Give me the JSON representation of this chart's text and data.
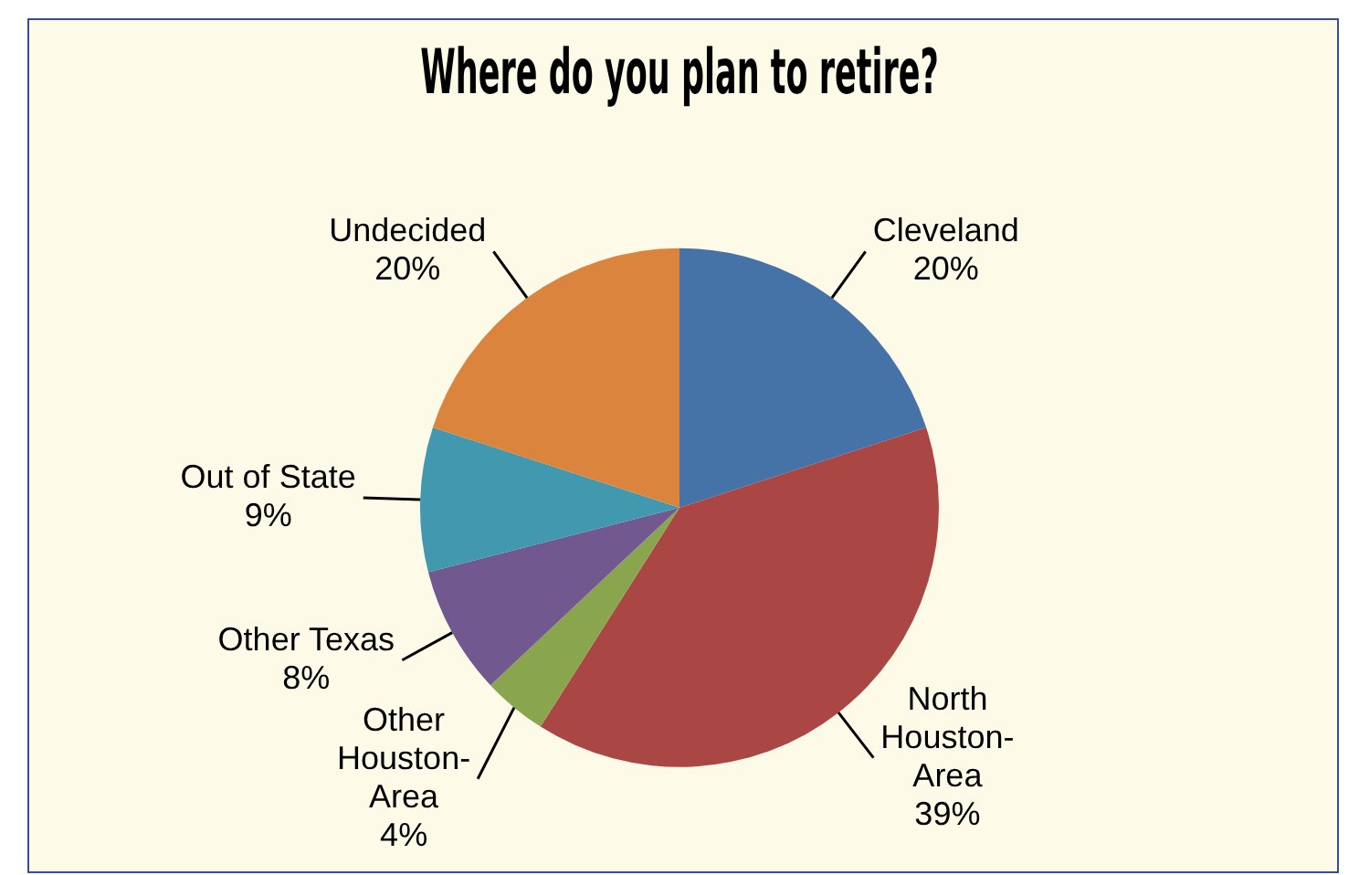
{
  "chart_data": {
    "type": "pie",
    "title": "Where do you plan to retire?",
    "categories": [
      "Cleveland",
      "North Houston-Area",
      "Other Houston-Area",
      "Other Texas",
      "Out of State",
      "Undecided"
    ],
    "values": [
      20,
      39,
      4,
      8,
      9,
      20
    ],
    "colors": [
      "#4572a7",
      "#aa4643",
      "#89a54e",
      "#71588f",
      "#4198af",
      "#db843d"
    ],
    "value_labels": [
      "20%",
      "39%",
      "4%",
      "8%",
      "9%",
      "20%"
    ],
    "legend": false
  }
}
